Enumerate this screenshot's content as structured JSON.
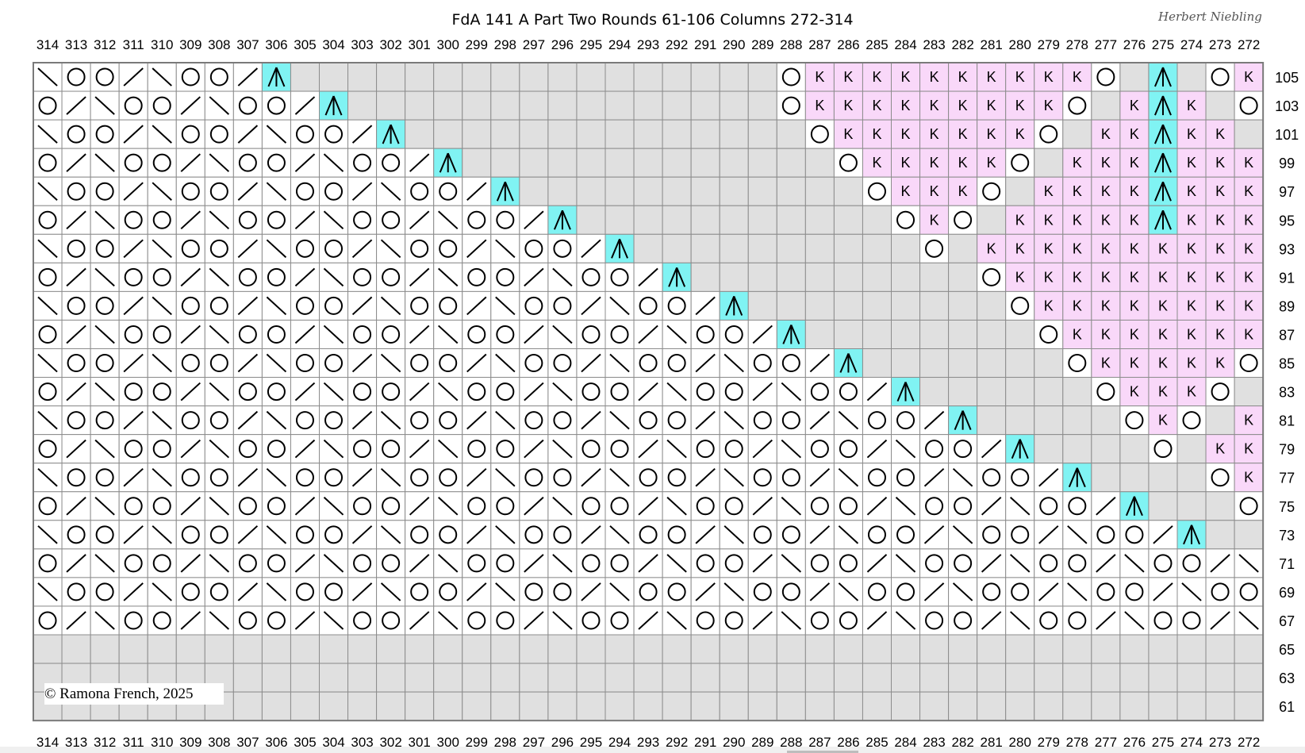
{
  "title": "FdA 141 A Part Two Rounds 61-106 Columns 272-314",
  "designer": "Herbert Niebling",
  "copyright": "©  Ramona French, 2025",
  "colors": {
    "grid": "#8c8c8c",
    "inactive": "#e0e0e0",
    "knit": "#f9d8f9",
    "center": "#80f3f3",
    "stitch": "#ffffff"
  },
  "legend": {
    "O": "yarn-over",
    "/": "k2tog",
    "\\": "ssk",
    "A": "centered-decrease",
    "K": "knit",
    "-": "no-stitch",
    ".": "plain-stitch"
  },
  "chart_data": {
    "type": "table",
    "columns_first": 314,
    "columns_last": 272,
    "rounds": [
      105,
      103,
      101,
      99,
      97,
      95,
      93,
      91,
      89,
      87,
      85,
      83,
      81,
      79,
      77,
      75,
      73,
      71,
      69,
      67,
      65,
      63,
      61
    ],
    "rows": {
      "105": "\\OO/\\OO/A--------------------OKKKKKKKKKKO-A-OK",
      "103": "O/\\OO/\\OO/A-----------------------OKKKKKKKKKO-KAK-O",
      "101": "\\OO/\\OO/\\OO/A--------------------------OKKKKKKKO-KKAKK-",
      "99": "O/\\OO/\\OO/\\OO/A-----------------------------OKKKKKO-KKKAKKK",
      "97": "\\OO/\\OO/\\OO/\\OO/A--------------------------------OKKKO-KKKKAKKK",
      "95": "O/\\OO/\\OO/\\OO/\\OO/A-----------------------------------OKO-KKKKKAKKK",
      "93": "\\OO/\\OO/\\OO/\\OO/\\OO/A--------------------------------------O-KKKKKKKKKK",
      "91": "O/\\OO/\\OO/\\OO/\\OO/\\OO/A------------------------------------------OKKKKKKKKK",
      "89": "\\OO/\\OO/\\OO/\\OO/\\OO/\\OO/A--------------------------------------------OKKKKKKKK",
      "87": "O/\\OO/\\OO/\\OO/\\OO/\\OO/\\OO/A-----------------------------------------------OKKKKKKK",
      "85": "\\OO/\\OO/\\OO/\\OO/\\OO/\\OO/\\OO/A--------------------------------------------------OKKKKKO",
      "83": "O/\\OO/\\OO/\\OO/\\OO/\\OO/\\OO/\\OO/A-----------------------------------------------------OKKKO-",
      "81": "\\OO/\\OO/\\OO/\\OO/\\OO/\\OO/\\OO/\\OO/A--------------------------------------------------------OKO-K",
      "79": "O/\\OO/\\OO/\\OO/\\OO/\\OO/\\OO/\\OO/\\OO/A-----------------------------------------------------------O-KK",
      "77": "\\OO/\\OO/\\OO/\\OO/\\OO/\\OO/\\OO/\\OO/\\OO/A--------------------------------------------------------------OK",
      "75": "O/\\OO/\\OO/\\OO/\\OO/\\OO/\\OO/\\OO/\\OO/\\OO/A-----------------------------------------------------------------O",
      "73": "\\OO/\\OO/\\OO/\\OO/\\OO/\\OO/\\OO/\\OO/\\OO/\\OO/A--------------------------------------------------------------------",
      "71": "O/\\OO/\\OO/\\OO/\\OO/\\OO/\\OO/\\OO/\\OO/\\OO/\\OO/\\",
      "69": "\\OO/\\OO/\\OO/\\OO/\\OO/\\OO/\\OO/\\OO/\\OO/\\OO/\\OO",
      "67": "O/\\OO/\\OO/\\OO/\\OO/\\OO/\\OO/\\OO/\\OO/\\OO/\\OO/\\",
      "65": "-------------------------------------------",
      "63": "-------------------------------------------",
      "61": "-------------------------------------------"
    }
  }
}
